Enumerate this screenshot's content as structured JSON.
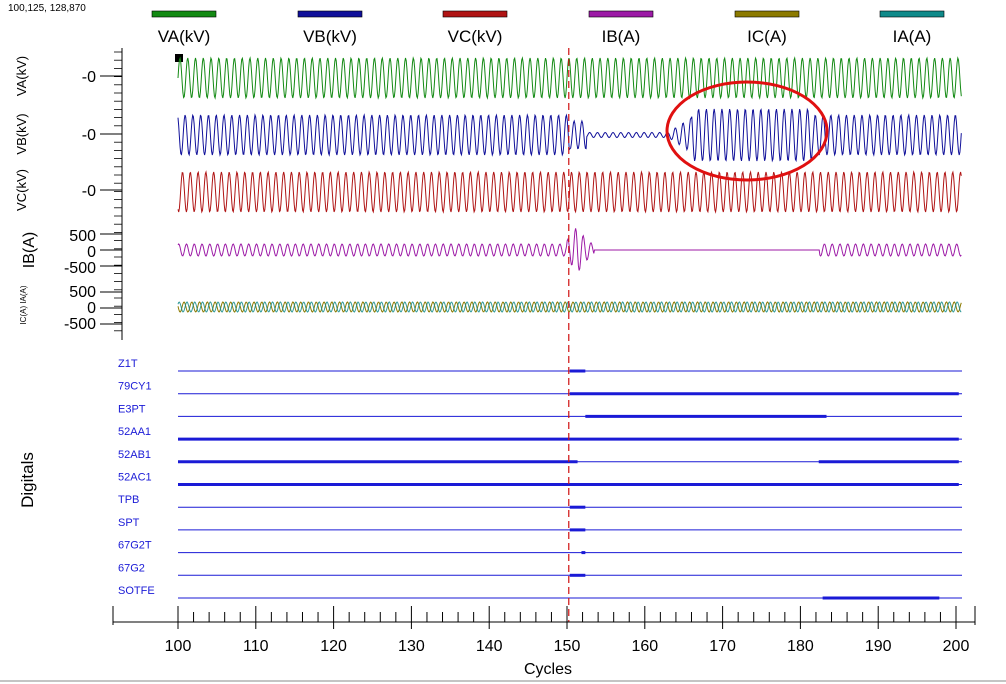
{
  "corner_readout": "100,125, 128,870",
  "colors": {
    "VA": "#138a13",
    "VB": "#10109a",
    "VC": "#b01414",
    "IB": "#9c1aa6",
    "IC": "#8c7a00",
    "IA": "#0f8a8a",
    "digital": "#1a1ad6",
    "trigger": "#d01010",
    "highlight": "#e01010"
  },
  "chart_data": {
    "type": "line",
    "title": "",
    "xlabel": "Cycles",
    "ylabel_digitals": "Digitals",
    "xlim": [
      100,
      200
    ],
    "x_ticks": [
      "100",
      "110",
      "120",
      "130",
      "140",
      "150",
      "160",
      "170",
      "180",
      "190",
      "200"
    ],
    "trigger_cycle": 151,
    "legend": [
      {
        "name": "VA(kV)",
        "color": "#138a13"
      },
      {
        "name": "VB(kV)",
        "color": "#10109a"
      },
      {
        "name": "VC(kV)",
        "color": "#b01414"
      },
      {
        "name": "IB(A)",
        "color": "#9c1aa6"
      },
      {
        "name": "IC(A)",
        "color": "#8c7a00"
      },
      {
        "name": "IA(A)",
        "color": "#0f8a8a"
      }
    ],
    "analog_axes": [
      {
        "label": "VA(kV)",
        "ticks": [
          "-0"
        ]
      },
      {
        "label": "VB(kV)",
        "ticks": [
          "-0"
        ]
      },
      {
        "label": "VC(kV)",
        "ticks": [
          "-0"
        ]
      },
      {
        "label": "IB(A)",
        "ticks": [
          "500",
          "0",
          "-500"
        ]
      },
      {
        "label": "IC(A) IA(A)",
        "ticks": [
          "500",
          "0",
          "-500"
        ]
      }
    ],
    "highlight_region": {
      "x_range": [
        164,
        182
      ],
      "channel": "VB(kV)"
    },
    "digitals": [
      {
        "name": "Z1T",
        "active": [
          [
            151,
            153
          ]
        ]
      },
      {
        "name": "79CY1",
        "active": [
          [
            151,
            201
          ]
        ]
      },
      {
        "name": "E3PT",
        "active": [
          [
            153,
            184
          ]
        ]
      },
      {
        "name": "52AA1",
        "active": [
          [
            100,
            201
          ]
        ]
      },
      {
        "name": "52AB1",
        "active": [
          [
            100,
            152
          ],
          [
            183,
            201
          ]
        ]
      },
      {
        "name": "52AC1",
        "active": [
          [
            100,
            201
          ]
        ]
      },
      {
        "name": "TPB",
        "active": [
          [
            151,
            153
          ]
        ]
      },
      {
        "name": "SPT",
        "active": [
          [
            151,
            153
          ]
        ]
      },
      {
        "name": "67G2T",
        "active": [
          [
            152.5,
            153
          ]
        ]
      },
      {
        "name": "67G2",
        "active": [
          [
            151,
            153
          ]
        ]
      },
      {
        "name": "SOTFE",
        "active": [
          [
            183.5,
            198.5
          ]
        ]
      }
    ]
  }
}
